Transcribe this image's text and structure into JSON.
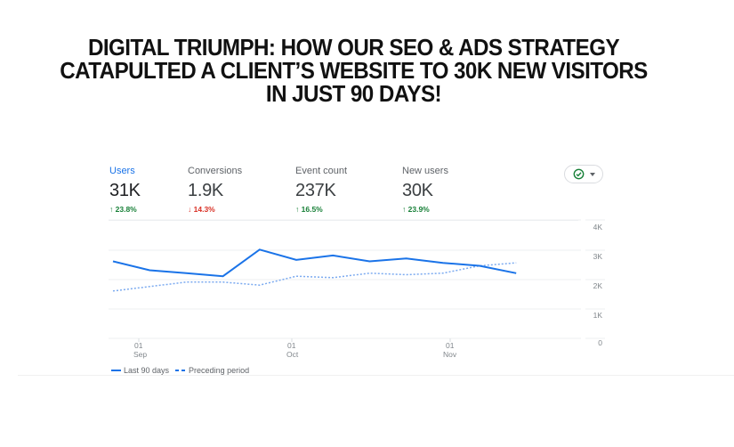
{
  "headline": {
    "lines": [
      "DIGITAL TRIUMPH: HOW OUR SEO & ADS STRATEGY",
      "CATAPULTED A CLIENT’S WEBSITE TO 30K NEW VISITORS",
      "IN JUST 90 DAYS!"
    ]
  },
  "metrics": [
    {
      "label": "Users",
      "value": "31K",
      "delta": "23.8%",
      "direction": "up",
      "active": true
    },
    {
      "label": "Conversions",
      "value": "1.9K",
      "delta": "14.3%",
      "direction": "down",
      "active": false
    },
    {
      "label": "Event count",
      "value": "237K",
      "delta": "16.5%",
      "direction": "up",
      "active": false
    },
    {
      "label": "New users",
      "value": "30K",
      "delta": "23.9%",
      "direction": "up",
      "active": false
    }
  ],
  "compare_control": {
    "icon": "check-circle-icon",
    "dropdown": "caret-down-icon"
  },
  "colors": {
    "accent": "#1a73e8",
    "up": "#188038",
    "down": "#d93025",
    "grid": "#eceff1"
  },
  "chart_data": {
    "type": "line",
    "title": "Users",
    "xlabel": "",
    "ylabel": "",
    "ylim": [
      0,
      4000
    ],
    "y_ticks": [
      "4K",
      "3K",
      "2K",
      "1K",
      "0"
    ],
    "y_axis_position": "right",
    "x_tick_labels": [
      {
        "day": "01",
        "month": "Sep"
      },
      {
        "day": "01",
        "month": "Oct"
      },
      {
        "day": "01",
        "month": "Nov"
      }
    ],
    "grid": true,
    "legend_position": "bottom-left",
    "series": [
      {
        "name": "Last 90 days",
        "style": "solid",
        "x": [
          0,
          1,
          2,
          3,
          4,
          5,
          6,
          7,
          8,
          9,
          10,
          11
        ],
        "values": [
          2600,
          2300,
          2200,
          2100,
          3000,
          2650,
          2800,
          2600,
          2700,
          2550,
          2450,
          2200
        ]
      },
      {
        "name": "Preceding period",
        "style": "dotted",
        "x": [
          0,
          1,
          2,
          3,
          4,
          5,
          6,
          7,
          8,
          9,
          10,
          11
        ],
        "values": [
          1600,
          1750,
          1900,
          1900,
          1800,
          2100,
          2050,
          2200,
          2150,
          2200,
          2450,
          2550
        ]
      }
    ]
  },
  "legend": {
    "solid_label": "Last 90 days",
    "dashed_label": "Preceding period"
  }
}
